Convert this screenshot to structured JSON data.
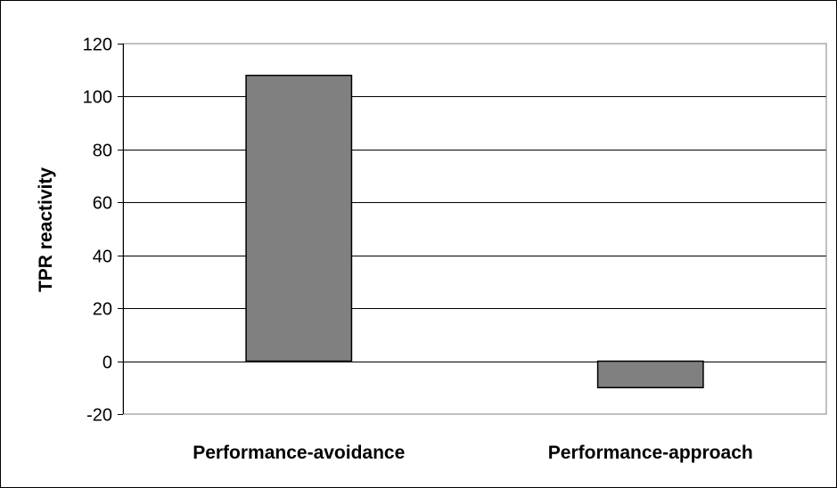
{
  "chart_data": {
    "type": "bar",
    "categories": [
      "Performance-avoidance",
      "Performance-approach"
    ],
    "values": [
      108,
      -10
    ],
    "title": "",
    "xlabel": "",
    "ylabel": "TPR reactivity",
    "ylim": [
      -20,
      120
    ],
    "yticks": [
      120,
      100,
      80,
      60,
      40,
      20,
      0,
      -20
    ],
    "grid": true,
    "legend": "none",
    "bar_color": "#808080"
  }
}
